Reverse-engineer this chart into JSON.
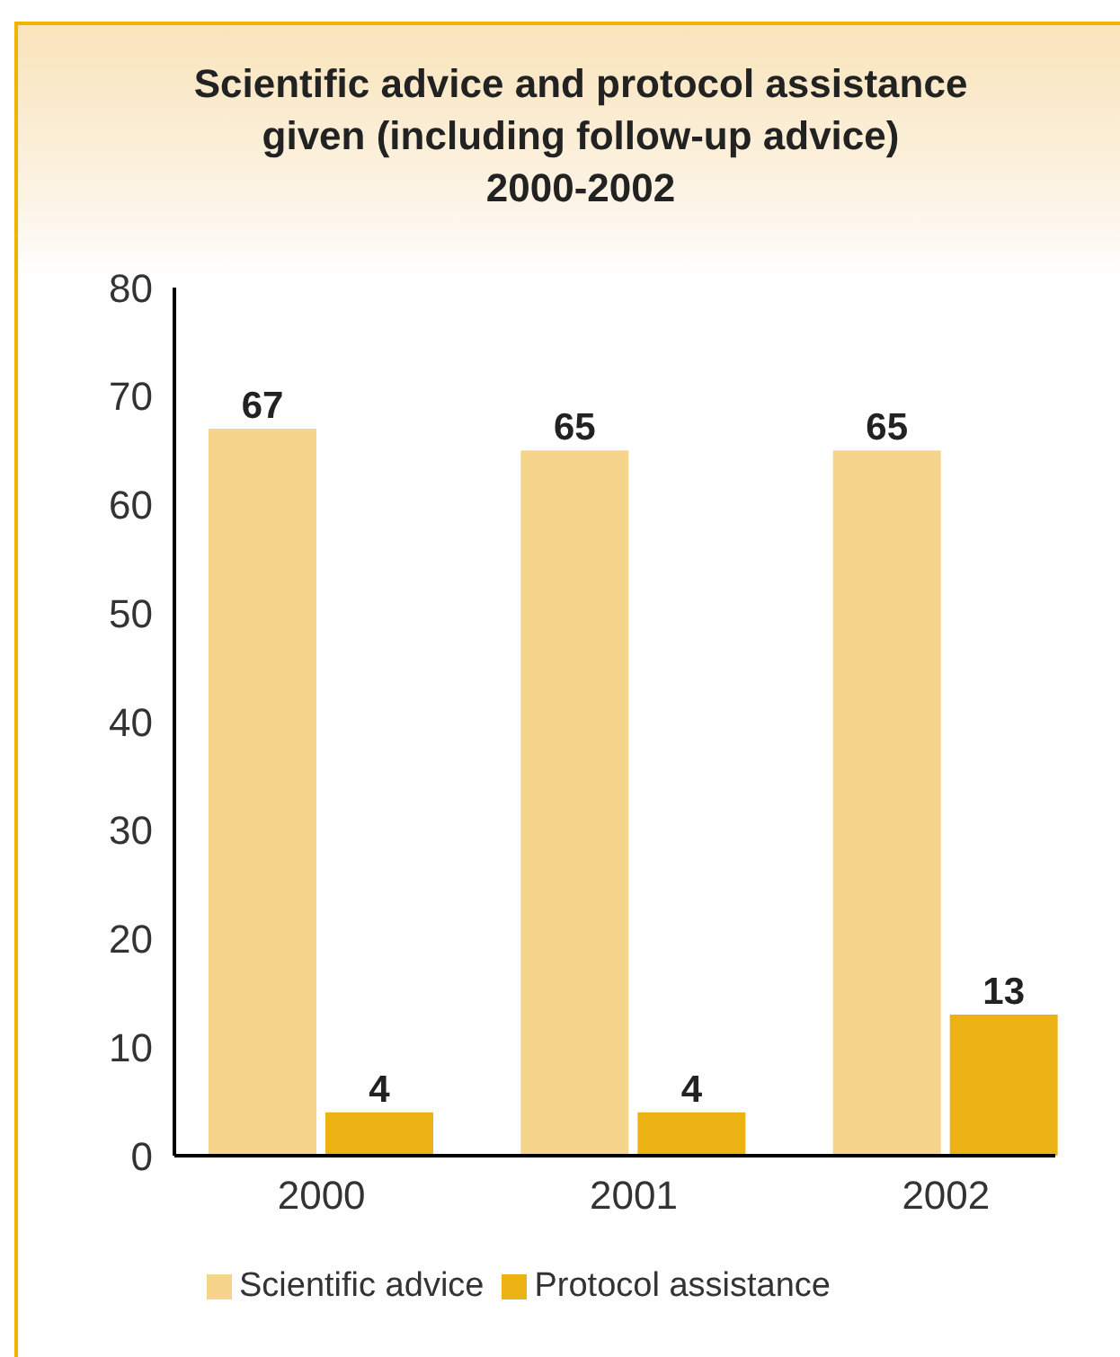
{
  "chart_data": {
    "type": "bar",
    "title": "Scientific advice and protocol assistance\ngiven (including follow-up advice)\n2000-2002",
    "categories": [
      "2000",
      "2001",
      "2002"
    ],
    "series": [
      {
        "name": "Scientific advice",
        "color": "#f6d48c",
        "values": [
          67,
          65,
          65
        ]
      },
      {
        "name": "Protocol assistance",
        "color": "#ecb213",
        "values": [
          4,
          4,
          13
        ]
      }
    ],
    "ylim": [
      0,
      80
    ],
    "yticks": [
      0,
      10,
      20,
      30,
      40,
      50,
      60,
      70,
      80
    ],
    "legend": "bottom",
    "data_labels": true
  }
}
